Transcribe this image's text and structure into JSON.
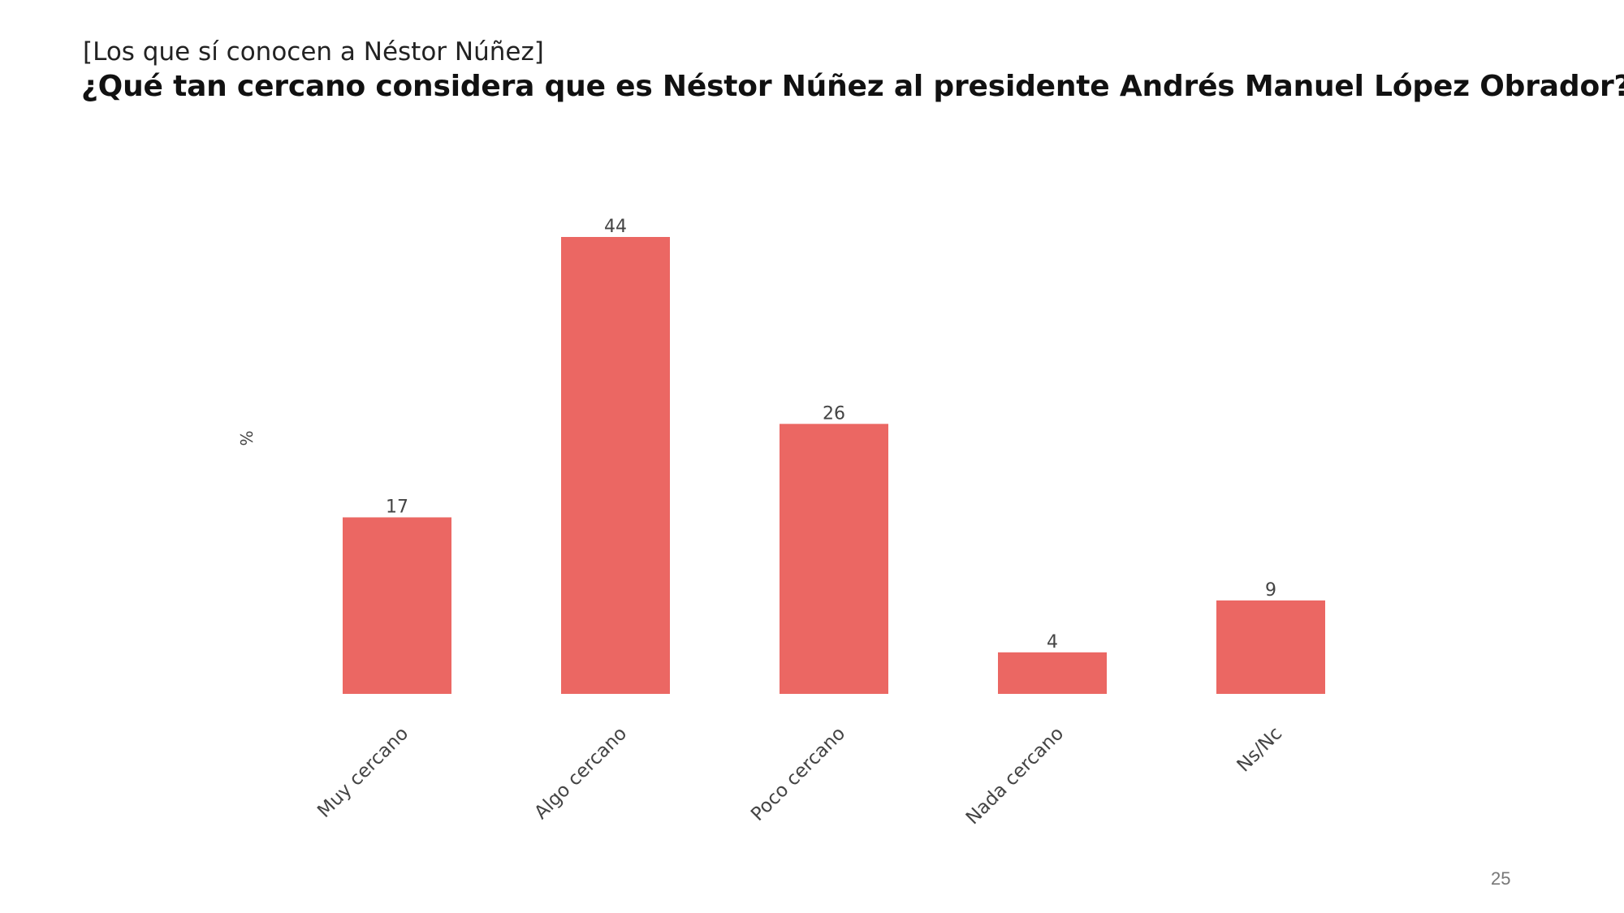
{
  "header": {
    "subtitle": "[Los que sí conocen a Néstor Núñez]",
    "title": "¿Qué tan cercano considera que es Néstor Núñez al presidente Andrés Manuel López Obrador?"
  },
  "footer": {
    "page_number": "25"
  },
  "chart_data": {
    "type": "bar",
    "title": "¿Qué tan cercano considera que es Néstor Núñez al presidente Andrés Manuel López Obrador?",
    "xlabel": "",
    "ylabel": "%",
    "categories": [
      "Muy cercano",
      "Algo cercano",
      "Poco cercano",
      "Nada cercano",
      "Ns/Nc"
    ],
    "values": [
      17,
      44,
      26,
      4,
      9
    ],
    "ylim": [
      0,
      44
    ],
    "grid": false,
    "legend": "none",
    "bar_color": "#EB6763",
    "label_color": "#444444"
  }
}
